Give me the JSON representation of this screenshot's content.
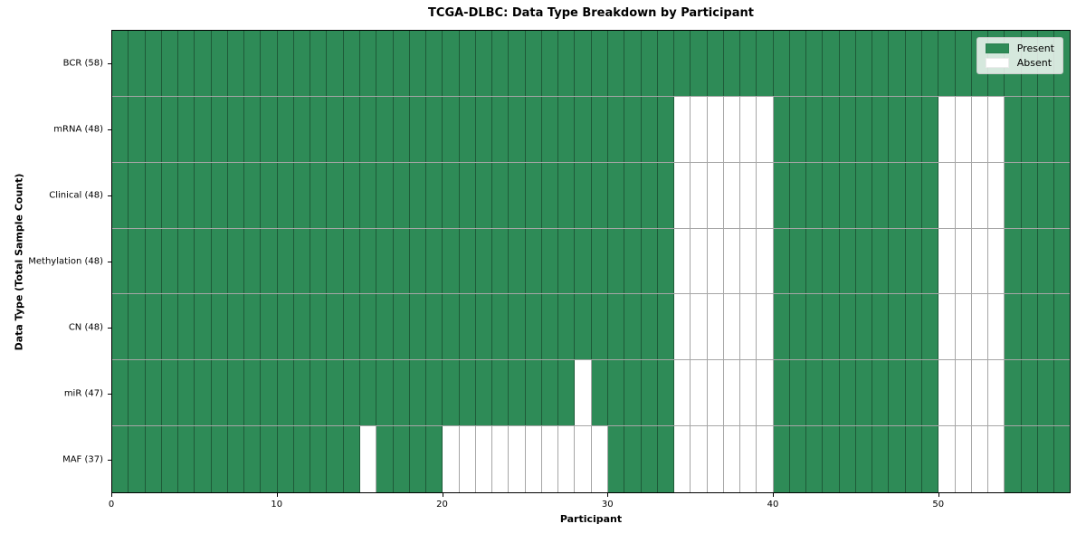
{
  "chart_data": {
    "type": "heatmap",
    "title": "TCGA-DLBC: Data Type Breakdown by Participant",
    "xlabel": "Participant",
    "ylabel": "Data Type (Total Sample Count)",
    "n_participants": 58,
    "x_ticks": [
      0,
      10,
      20,
      30,
      40,
      50
    ],
    "grid": true,
    "legend_position": "upper right",
    "colors": {
      "present": "#2e8b57",
      "absent": "#ffffff",
      "gridline": "rgba(0,0,0,0.35)"
    },
    "legend": [
      {
        "label": "Present",
        "color": "#2e8b57"
      },
      {
        "label": "Absent",
        "color": "#ffffff"
      }
    ],
    "rows": [
      {
        "label": "BCR (58)",
        "count": 58,
        "absent": []
      },
      {
        "label": "mRNA (48)",
        "count": 48,
        "absent": [
          34,
          35,
          36,
          37,
          38,
          39,
          50,
          51,
          52,
          53
        ]
      },
      {
        "label": "Clinical (48)",
        "count": 48,
        "absent": [
          34,
          35,
          36,
          37,
          38,
          39,
          50,
          51,
          52,
          53
        ]
      },
      {
        "label": "Methylation (48)",
        "count": 48,
        "absent": [
          34,
          35,
          36,
          37,
          38,
          39,
          50,
          51,
          52,
          53
        ]
      },
      {
        "label": "CN (48)",
        "count": 48,
        "absent": [
          34,
          35,
          36,
          37,
          38,
          39,
          50,
          51,
          52,
          53
        ]
      },
      {
        "label": "miR (47)",
        "count": 47,
        "absent": [
          28,
          34,
          35,
          36,
          37,
          38,
          39,
          50,
          51,
          52,
          53
        ]
      },
      {
        "label": "MAF (37)",
        "count": 37,
        "absent": [
          15,
          20,
          21,
          22,
          23,
          24,
          25,
          26,
          27,
          28,
          29,
          34,
          35,
          36,
          37,
          38,
          39,
          50,
          51,
          52,
          53
        ]
      }
    ]
  }
}
